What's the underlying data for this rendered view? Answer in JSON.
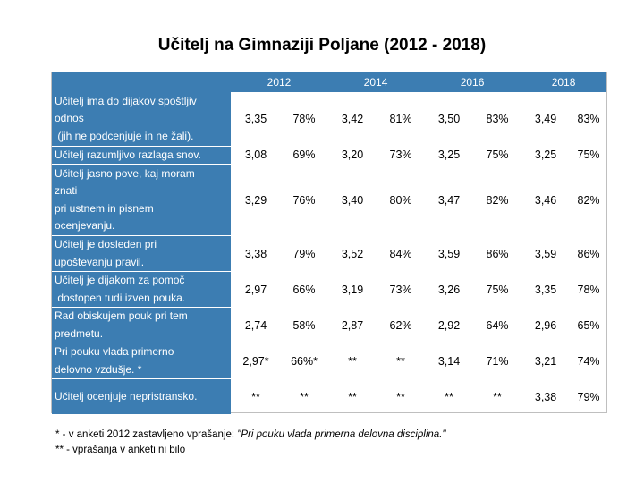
{
  "title": "Učitelj na Gimnaziji Poljane (2012 - 2018)",
  "years": [
    "2012",
    "2014",
    "2016",
    "2018"
  ],
  "rows": [
    {
      "label": [
        "Učitelj ima do dijakov spoštljiv",
        "odnos",
        " (jih ne podcenjuje in ne žali)."
      ],
      "cells": [
        "3,35",
        "78%",
        "3,42",
        "81%",
        "3,50",
        "83%",
        "3,49",
        "83%"
      ]
    },
    {
      "label": [
        "Učitelj razumljivo razlaga snov."
      ],
      "cells": [
        "3,08",
        "69%",
        "3,20",
        "73%",
        "3,25",
        "75%",
        "3,25",
        "75%"
      ]
    },
    {
      "label": [
        "Učitelj jasno pove, kaj moram",
        "znati",
        "pri ustnem in pisnem",
        "ocenjevanju."
      ],
      "cells": [
        "3,29",
        "76%",
        "3,40",
        "80%",
        "3,47",
        "82%",
        "3,46",
        "82%"
      ]
    },
    {
      "label": [
        "Učitelj je dosleden pri",
        "upoštevanju pravil."
      ],
      "cells": [
        "3,38",
        "79%",
        "3,52",
        "84%",
        "3,59",
        "86%",
        "3,59",
        "86%"
      ]
    },
    {
      "label": [
        "Učitelj je dijakom za pomoč",
        " dostopen tudi izven pouka."
      ],
      "cells": [
        "2,97",
        "66%",
        "3,19",
        "73%",
        "3,26",
        "75%",
        "3,35",
        "78%"
      ]
    },
    {
      "label": [
        "Rad obiskujem pouk pri tem",
        "predmetu."
      ],
      "cells": [
        "2,74",
        "58%",
        "2,87",
        "62%",
        "2,92",
        "64%",
        "2,96",
        "65%"
      ]
    },
    {
      "label": [
        "Pri pouku vlada primerno",
        "delovno vzdušje. *"
      ],
      "cells": [
        "2,97*",
        "66%*",
        "**",
        "**",
        "3,14",
        "71%",
        "3,21",
        "74%"
      ]
    },
    {
      "label": [
        "Učitelj ocenjuje nepristransko."
      ],
      "cells": [
        "**",
        "**",
        "**",
        "**",
        "**",
        "**",
        "3,38",
        "79%"
      ]
    }
  ],
  "footnotes": {
    "note1_prefix": "* - v anketi 2012 zastavljeno vprašanje: ",
    "note1_quote": "\"Pri pouku vlada primerna delovna disciplina.\"",
    "note2": "** - vprašanja v anketi ni bilo"
  }
}
